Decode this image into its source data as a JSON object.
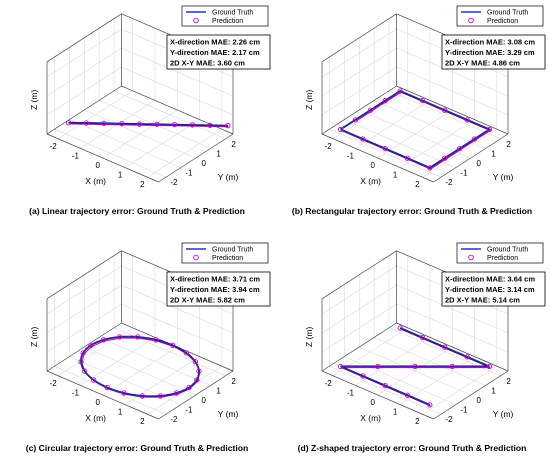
{
  "chart_data": [
    {
      "type": "line3d",
      "caption": "(a) Linear trajectory error: Ground Truth & Prediction",
      "xlabel": "X (m)",
      "ylabel": "Y (m)",
      "zlabel": "Z (m)",
      "xticks": [
        "-2",
        "-1",
        "0",
        "1",
        "2"
      ],
      "yticks": [
        "-2",
        "-1",
        "0",
        "1",
        "2"
      ],
      "xlim": [
        -2.5,
        2.5
      ],
      "ylim": [
        -2.5,
        2.5
      ],
      "zlim": [
        0,
        1
      ],
      "grid": true,
      "legend": [
        "Ground Truth",
        "Prediction"
      ],
      "mae": [
        "X-direction MAE: 2.26 cm",
        "Y-direction MAE: 2.17 cm",
        "2D X-Y MAE: 3.60 cm"
      ],
      "ground_truth": {
        "x": [
          -2.2,
          2.2
        ],
        "y": [
          -1.5,
          2.6
        ]
      },
      "prediction": {
        "x": [
          -2.2,
          -1.71,
          -1.22,
          -0.73,
          -0.24,
          0.24,
          0.73,
          1.22,
          1.71,
          2.2
        ],
        "y": [
          -1.5,
          -1.04,
          -0.59,
          -0.13,
          0.32,
          0.78,
          1.23,
          1.69,
          2.14,
          2.6
        ]
      }
    },
    {
      "type": "line3d",
      "caption": "(b) Rectangular trajectory error: Ground Truth & Prediction",
      "xlabel": "X (m)",
      "ylabel": "Y (m)",
      "zlabel": "Z (m)",
      "xticks": [
        "-2",
        "-1",
        "0",
        "1",
        "2"
      ],
      "yticks": [
        "-2",
        "-1",
        "0",
        "1",
        "2"
      ],
      "xlim": [
        -2.5,
        2.5
      ],
      "ylim": [
        -2.5,
        2.5
      ],
      "zlim": [
        0,
        1
      ],
      "grid": true,
      "legend": [
        "Ground Truth",
        "Prediction"
      ],
      "mae": [
        "X-direction MAE: 3.08 cm",
        "Y-direction MAE: 3.29 cm",
        "2D X-Y MAE: 4.86 cm"
      ],
      "ground_truth": {
        "x": [
          -2,
          2,
          2,
          -2,
          -2
        ],
        "y": [
          -2,
          -2,
          2,
          2,
          -2
        ]
      },
      "prediction": {
        "x": [
          -2,
          -1,
          0,
          1,
          2,
          2,
          2,
          2,
          2,
          1,
          0,
          -1,
          -2,
          -2,
          -2,
          -2
        ],
        "y": [
          -2,
          -2,
          -2,
          -2,
          -2,
          -1,
          0,
          1,
          2,
          2,
          2,
          2,
          2,
          1,
          0,
          -1
        ]
      }
    },
    {
      "type": "line3d",
      "caption": "(c) Circular trajectory error: Ground Truth & Prediction",
      "xlabel": "X (m)",
      "ylabel": "Y (m)",
      "zlabel": "Z (m)",
      "xticks": [
        "-2",
        "-1",
        "0",
        "1",
        "2"
      ],
      "yticks": [
        "-2",
        "-1",
        "0",
        "1",
        "2"
      ],
      "xlim": [
        -2.5,
        2.5
      ],
      "ylim": [
        -2.5,
        2.5
      ],
      "zlim": [
        0,
        1
      ],
      "grid": true,
      "legend": [
        "Ground Truth",
        "Prediction"
      ],
      "mae": [
        "X-direction MAE: 3.71 cm",
        "Y-direction MAE: 3.94 cm",
        "2D X-Y MAE: 5.82 cm"
      ],
      "ground_truth": {
        "shape": "circle",
        "center": [
          0,
          0
        ],
        "radius": 2.2
      },
      "prediction": {
        "shape": "circle",
        "center": [
          0,
          0
        ],
        "radius": 2.2,
        "points": 20
      }
    },
    {
      "type": "line3d",
      "caption": "(d) Z-shaped trajectory error: Ground Truth & Prediction",
      "xlabel": "X (m)",
      "ylabel": "Y (m)",
      "zlabel": "Z (m)",
      "xticks": [
        "-2",
        "-1",
        "0",
        "1",
        "2"
      ],
      "yticks": [
        "-2",
        "-1",
        "0",
        "1",
        "2"
      ],
      "xlim": [
        -2.5,
        2.5
      ],
      "ylim": [
        -2.5,
        2.5
      ],
      "zlim": [
        0,
        1
      ],
      "grid": true,
      "legend": [
        "Ground Truth",
        "Prediction"
      ],
      "mae": [
        "X-direction MAE: 3.64 cm",
        "Y-direction MAE: 3.14 cm",
        "2D X-Y MAE: 5.14 cm"
      ],
      "ground_truth": {
        "x": [
          -2,
          2,
          -2,
          2
        ],
        "y": [
          2,
          2,
          -2,
          -2
        ]
      },
      "prediction": {
        "x": [
          -2,
          -1,
          0,
          1,
          2,
          1,
          0,
          -1,
          -2,
          -1,
          0,
          1,
          2
        ],
        "y": [
          2,
          2,
          2,
          2,
          2,
          1,
          0,
          -1,
          -2,
          -2,
          -2,
          -2,
          -2
        ]
      }
    }
  ],
  "colors": {
    "ground_truth": "#2233cc",
    "ground_truth_dark": "#111144",
    "prediction": "#d000d0",
    "grid": "#d9d9d9",
    "axis": "#444444"
  }
}
